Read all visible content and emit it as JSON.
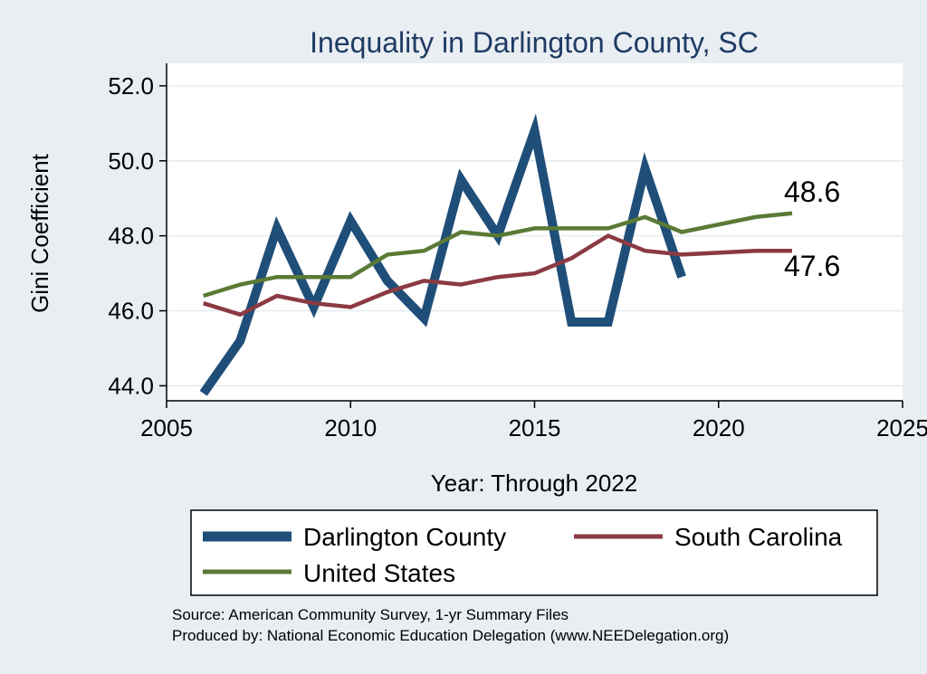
{
  "chart_data": {
    "type": "line",
    "title": "Inequality in Darlington County, SC",
    "xlabel": "Year: Through 2022",
    "ylabel": "Gini Coefficient",
    "xlim": [
      2005,
      2025
    ],
    "ylim": [
      43.6,
      52.6
    ],
    "x_ticks": [
      "2005",
      "2010",
      "2015",
      "2020",
      "2025"
    ],
    "y_ticks": [
      "44.0",
      "46.0",
      "48.0",
      "50.0",
      "52.0"
    ],
    "grid": true,
    "legend_position": "bottom",
    "series": [
      {
        "name": "Darlington County",
        "color": "#1f4e79",
        "x": [
          2006,
          2007,
          2008,
          2009,
          2010,
          2011,
          2012,
          2013,
          2014,
          2015,
          2016,
          2017,
          2018,
          2019
        ],
        "values": [
          43.8,
          45.2,
          48.2,
          46.1,
          48.4,
          46.8,
          45.8,
          49.5,
          48.0,
          50.8,
          45.7,
          45.7,
          49.8,
          46.9
        ]
      },
      {
        "name": "South Carolina",
        "color": "#8b3a42",
        "x": [
          2006,
          2007,
          2008,
          2009,
          2010,
          2011,
          2012,
          2013,
          2014,
          2015,
          2016,
          2017,
          2018,
          2019,
          2021,
          2022
        ],
        "values": [
          46.2,
          45.9,
          46.4,
          46.2,
          46.1,
          46.5,
          46.8,
          46.7,
          46.9,
          47.0,
          47.4,
          48.0,
          47.6,
          47.5,
          47.6,
          47.6
        ]
      },
      {
        "name": "United States",
        "color": "#5a7a35",
        "x": [
          2006,
          2007,
          2008,
          2009,
          2010,
          2011,
          2012,
          2013,
          2014,
          2015,
          2016,
          2017,
          2018,
          2019,
          2021,
          2022
        ],
        "values": [
          46.4,
          46.7,
          46.9,
          46.9,
          46.9,
          47.5,
          47.6,
          48.1,
          48.0,
          48.2,
          48.2,
          48.2,
          48.5,
          48.1,
          48.5,
          48.6
        ]
      }
    ],
    "annotations": [
      {
        "text": "48.6",
        "series": "United States"
      },
      {
        "text": "47.6",
        "series": "South Carolina"
      }
    ]
  },
  "source_line1": "Source: American Community Survey, 1-yr Summary Files",
  "source_line2": "Produced by: National Economic Education Delegation (www.NEEDelegation.org)"
}
